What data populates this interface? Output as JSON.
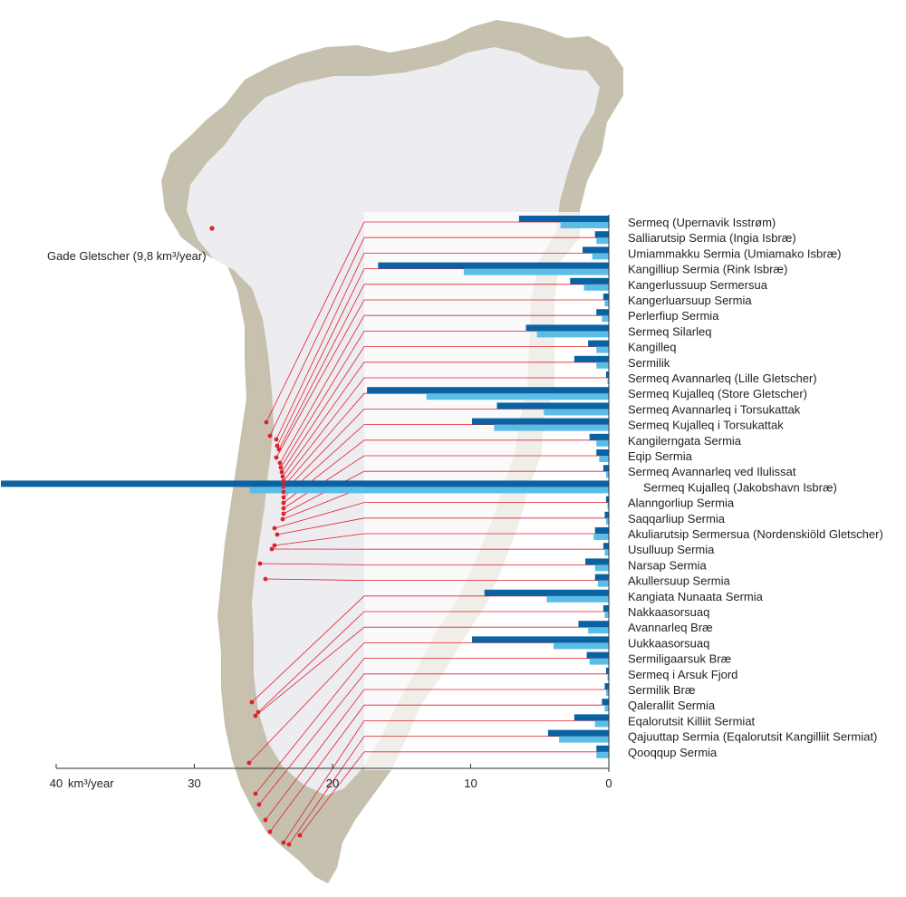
{
  "chart_data": {
    "type": "bar",
    "orientation": "horizontal",
    "unit_label": "km³/year",
    "axis": {
      "ticks": [
        "40",
        "30",
        "20",
        "10",
        "0"
      ],
      "tick_values": [
        40,
        30,
        20,
        10,
        0
      ],
      "unit_label": "km³/year",
      "xlim": [
        0,
        40
      ],
      "direction": "reversed"
    },
    "callout": "Gade Gletscher (9,8 km³/year)",
    "series": [
      {
        "color": "#0a62a2"
      },
      {
        "color": "#5bbde6"
      }
    ],
    "categories": [
      "Sermeq (Upernavik Isstrøm)",
      "Salliarutsip Sermia (Ingia Isbræ)",
      "Umiammakku Sermia (Umiamako Isbræ)",
      "Kangilliup Sermia (Rink Isbræ)",
      "Kangerlussuup Sermersua",
      "Kangerluarsuup Sermia",
      "Perlerfiup Sermia",
      "Sermeq Silarleq",
      "Kangilleq",
      "Sermilik",
      "Sermeq Avannarleq (Lille Gletscher)",
      "Sermeq Kujalleq (Store Gletscher)",
      "Sermeq Avannarleq i Torsukattak",
      "Sermeq Kujalleq i Torsukattak",
      "Kangilerngata Sermia",
      "Eqip Sermia",
      "Sermeq Avannarleq ved Ilulissat",
      "Sermeq Kujalleq (Jakobshavn Isbræ)",
      "Alanngorliup Sermia",
      "Saqqarliup Sermia",
      "Akuliarutsip Sermersua (Nordenskiöld Gletscher)",
      "Usulluup Sermia",
      "Narsap Sermia",
      "Akullersuup Sermia",
      "Kangiata Nunaata Sermia",
      "Nakkaasorsuaq",
      "Avannarleq Bræ",
      "Uukkaasorsuaq",
      "Sermiligaarsuk Bræ",
      "Sermeq i Arsuk Fjord",
      "Sermilik Bræ",
      "Qalerallit Sermia",
      "Eqalorutsit Killiit Sermiat",
      "Qajuuttap Sermia (Eqalorutsit Kangilliit Sermiat)",
      "Qooqqup Sermia"
    ],
    "dark_values": [
      6.5,
      1.0,
      1.9,
      16.7,
      2.8,
      0.4,
      0.9,
      6.0,
      1.5,
      2.5,
      0.2,
      17.5,
      8.1,
      9.9,
      1.4,
      0.9,
      0.4,
      44.0,
      0.2,
      0.3,
      1.0,
      0.4,
      1.7,
      1.0,
      9.0,
      0.4,
      2.2,
      9.9,
      1.6,
      0.2,
      0.3,
      0.5,
      2.5,
      4.4,
      0.9
    ],
    "light_values": [
      3.5,
      0.9,
      1.2,
      10.5,
      1.8,
      0.3,
      0.5,
      5.2,
      0.9,
      0.9,
      0.1,
      13.2,
      4.7,
      8.3,
      0.9,
      0.7,
      0.2,
      26.0,
      0.1,
      0.2,
      1.1,
      0.3,
      1.0,
      0.8,
      4.5,
      0.3,
      1.5,
      4.0,
      1.4,
      0.1,
      0.2,
      0.3,
      1.0,
      3.6,
      0.9
    ]
  }
}
